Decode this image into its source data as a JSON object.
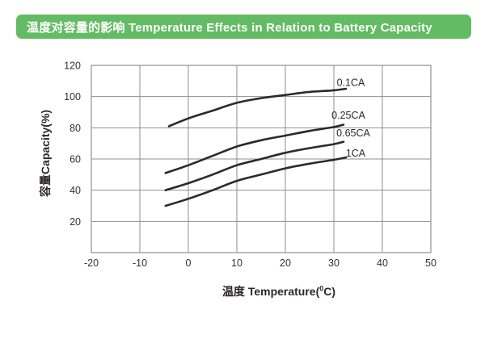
{
  "header": {
    "title": "温度对容量的影响 Temperature Effects in Relation to Battery Capacity",
    "bg_color": "#63bb63",
    "text_color": "#ffffff"
  },
  "chart_data": {
    "type": "line",
    "title": "温度对容量的影响 Temperature Effects in Relation to Battery Capacity",
    "xlabel": {
      "prefix": "温度 Temperature(",
      "sup": "0",
      "suffix": "C)"
    },
    "ylabel": "容量Capacity(%)",
    "xlim": [
      -20,
      50
    ],
    "ylim": [
      0,
      120
    ],
    "x_ticks": [
      -20,
      -10,
      0,
      10,
      20,
      30,
      40,
      50
    ],
    "y_ticks": [
      20,
      40,
      60,
      80,
      100,
      120
    ],
    "grid": true,
    "legend_position": "inline labels at right end of each curve",
    "colors": {
      "grid": "#8f8f8f",
      "curve": "#2d2829",
      "tick_text": "#353031"
    },
    "series": [
      {
        "name": "0.1CA",
        "label": {
          "x": 33.5,
          "y": 109
        },
        "points": [
          [
            -4,
            81
          ],
          [
            0,
            86
          ],
          [
            5,
            91
          ],
          [
            10,
            96
          ],
          [
            15,
            99
          ],
          [
            20,
            101
          ],
          [
            25,
            103
          ],
          [
            30,
            104
          ],
          [
            32.5,
            105
          ]
        ]
      },
      {
        "name": "0.25CA",
        "label": {
          "x": 33,
          "y": 88
        },
        "points": [
          [
            -4.7,
            51
          ],
          [
            0,
            56
          ],
          [
            5,
            62
          ],
          [
            10,
            68
          ],
          [
            15,
            72
          ],
          [
            20,
            75
          ],
          [
            25,
            78
          ],
          [
            30,
            80.5
          ],
          [
            32,
            82
          ]
        ]
      },
      {
        "name": "0.65CA",
        "label": {
          "x": 34,
          "y": 76.5
        },
        "points": [
          [
            -4.7,
            40
          ],
          [
            0,
            44.5
          ],
          [
            5,
            50
          ],
          [
            10,
            56
          ],
          [
            15,
            60
          ],
          [
            20,
            64
          ],
          [
            25,
            67
          ],
          [
            30,
            69.5
          ],
          [
            32,
            71
          ]
        ]
      },
      {
        "name": "1CA",
        "label": {
          "x": 34.5,
          "y": 63.5
        },
        "points": [
          [
            -4.7,
            30
          ],
          [
            0,
            34.5
          ],
          [
            5,
            40
          ],
          [
            10,
            46
          ],
          [
            15,
            50
          ],
          [
            20,
            54
          ],
          [
            25,
            57
          ],
          [
            30,
            59.5
          ],
          [
            32.5,
            61
          ]
        ]
      }
    ]
  }
}
